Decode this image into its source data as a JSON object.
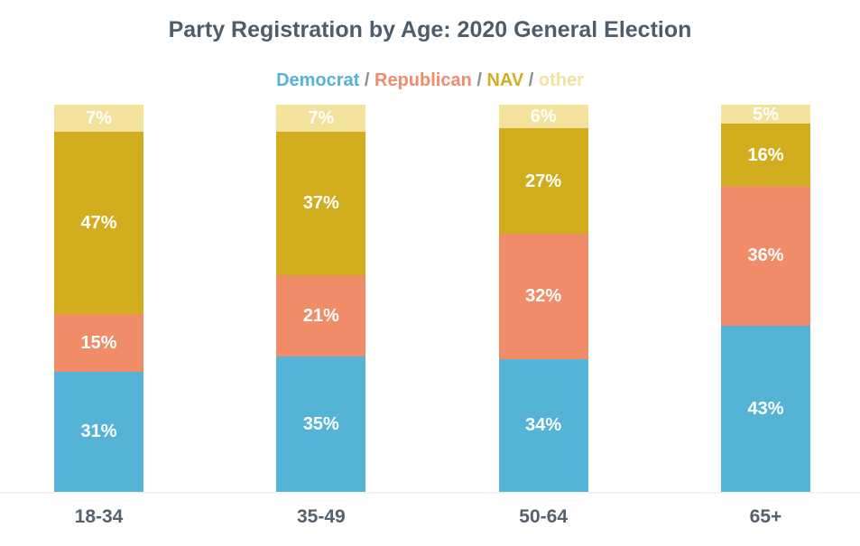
{
  "title": "Party Registration by Age: 2020 General Election",
  "legend": {
    "separator": " / ",
    "items": [
      "Democrat",
      "Republican",
      "NAV",
      "other"
    ]
  },
  "chart_data": {
    "type": "bar",
    "stacked": true,
    "orientation": "vertical",
    "title": "Party Registration by Age: 2020 General Election",
    "categories": [
      "18-34",
      "35-49",
      "50-64",
      "65+"
    ],
    "series": [
      {
        "name": "Democrat",
        "color": "#55b3d6",
        "values": [
          31,
          35,
          34,
          43
        ]
      },
      {
        "name": "Republican",
        "color": "#f08c68",
        "values": [
          15,
          21,
          32,
          36
        ]
      },
      {
        "name": "NAV",
        "color": "#d2ae1e",
        "values": [
          47,
          37,
          27,
          16
        ]
      },
      {
        "name": "other",
        "color": "#f2e29b",
        "values": [
          7,
          7,
          6,
          5
        ]
      }
    ],
    "value_suffix": "%",
    "value_labels_inside": true,
    "legend_position": "top",
    "xlabel": "",
    "ylabel": "",
    "ylim": [
      0,
      100
    ],
    "grid": false
  },
  "colors": {
    "title_text": "#4d5d6c",
    "axis_label_text": "#55616d",
    "legend_separator": "#85909a",
    "value_label_text": "#ffffff",
    "baseline": "#f2f2f2",
    "background": "#ffffff"
  }
}
